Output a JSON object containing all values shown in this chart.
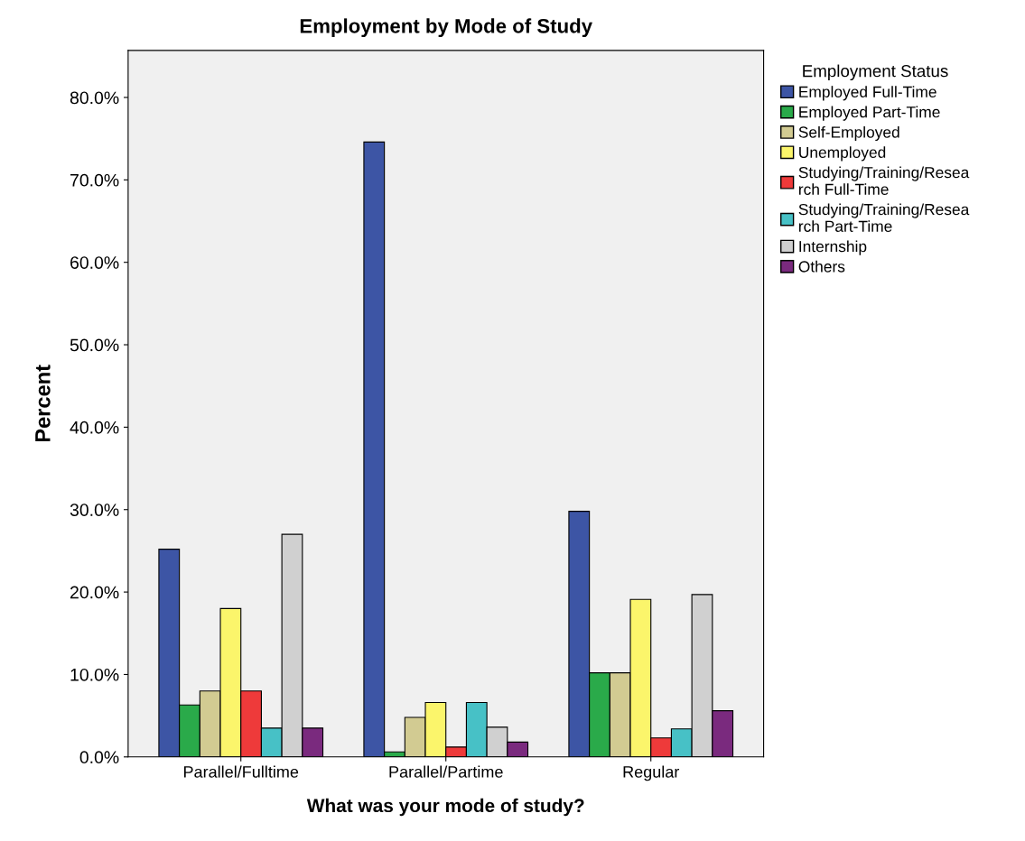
{
  "chart_data": {
    "type": "bar",
    "title": "Employment by Mode of Study",
    "xlabel": "What was your mode of study?",
    "ylabel": "Percent",
    "legend_title": "Employment Status",
    "categories": [
      "Parallel/Fulltime",
      "Parallel/Partime",
      "Regular"
    ],
    "series": [
      {
        "name": "Employed Full-Time",
        "color": "#3d55a5",
        "values": [
          25.2,
          74.6,
          29.8
        ]
      },
      {
        "name": "Employed Part-Time",
        "color": "#2aaa4a",
        "values": [
          6.3,
          0.6,
          10.2
        ]
      },
      {
        "name": "Self-Employed",
        "color": "#d2cb92",
        "values": [
          8.0,
          4.8,
          10.2
        ]
      },
      {
        "name": "Unemployed",
        "color": "#fbf56b",
        "values": [
          18.0,
          6.6,
          19.1
        ]
      },
      {
        "name": "Studying/Training/Resea\nrch Full-Time",
        "color": "#ee3a3a",
        "values": [
          8.0,
          1.2,
          2.3
        ]
      },
      {
        "name": "Studying/Training/Resea\nrch Part-Time",
        "color": "#47c1c6",
        "values": [
          3.5,
          6.6,
          3.4
        ]
      },
      {
        "name": "Internship",
        "color": "#d0d0d0",
        "values": [
          27.0,
          3.6,
          19.7
        ]
      },
      {
        "name": "Others",
        "color": "#7a2a7e",
        "values": [
          3.5,
          1.8,
          5.6
        ]
      }
    ],
    "ylim": [
      0,
      85.7
    ],
    "yticks": [
      {
        "value": 0,
        "label": "0.0%"
      },
      {
        "value": 10,
        "label": "10.0%"
      },
      {
        "value": 20,
        "label": "20.0%"
      },
      {
        "value": 30,
        "label": "30.0%"
      },
      {
        "value": 40,
        "label": "40.0%"
      },
      {
        "value": 50,
        "label": "50.0%"
      },
      {
        "value": 60,
        "label": "60.0%"
      },
      {
        "value": 70,
        "label": "70.0%"
      },
      {
        "value": 80,
        "label": "80.0%"
      }
    ],
    "grid": false,
    "legend": "right"
  }
}
